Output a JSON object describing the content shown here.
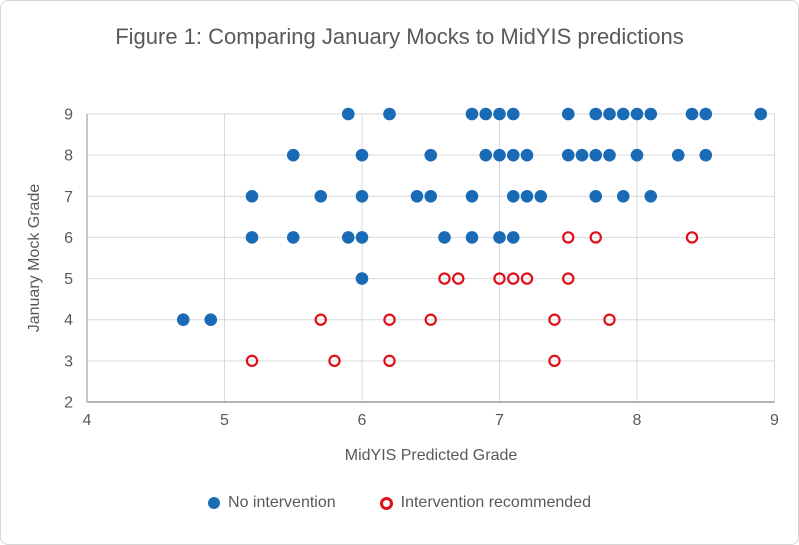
{
  "chart_data": {
    "type": "scatter",
    "title": "Figure 1: Comparing January Mocks to MidYIS predictions",
    "xlabel": "MidYIS Predicted Grade",
    "ylabel": "January Mock Grade",
    "xlim": [
      4,
      9
    ],
    "ylim": [
      2,
      9
    ],
    "xticks": [
      4,
      5,
      6,
      7,
      8,
      9
    ],
    "yticks": [
      2,
      3,
      4,
      5,
      6,
      7,
      8,
      9
    ],
    "grid": true,
    "legend_position": "bottom",
    "colors": {
      "gridline": "#d9d9d9",
      "axis_line": "#b3b3b3",
      "tick_text": "#595959"
    },
    "series": [
      {
        "id": "no-intervention",
        "name": "No intervention",
        "marker": "filled-circle",
        "color": "#1a6bb5",
        "points": [
          [
            5.9,
            9
          ],
          [
            6.2,
            9
          ],
          [
            6.8,
            9
          ],
          [
            6.9,
            9
          ],
          [
            7.0,
            9
          ],
          [
            7.1,
            9
          ],
          [
            7.5,
            9
          ],
          [
            7.7,
            9
          ],
          [
            7.8,
            9
          ],
          [
            7.9,
            9
          ],
          [
            8.0,
            9
          ],
          [
            8.1,
            9
          ],
          [
            8.4,
            9
          ],
          [
            8.5,
            9
          ],
          [
            8.9,
            9
          ],
          [
            5.5,
            8
          ],
          [
            6.0,
            8
          ],
          [
            6.5,
            8
          ],
          [
            6.9,
            8
          ],
          [
            7.0,
            8
          ],
          [
            7.1,
            8
          ],
          [
            7.2,
            8
          ],
          [
            7.5,
            8
          ],
          [
            7.6,
            8
          ],
          [
            7.7,
            8
          ],
          [
            7.8,
            8
          ],
          [
            8.0,
            8
          ],
          [
            8.3,
            8
          ],
          [
            8.5,
            8
          ],
          [
            5.2,
            7
          ],
          [
            5.7,
            7
          ],
          [
            6.0,
            7
          ],
          [
            6.4,
            7
          ],
          [
            6.5,
            7
          ],
          [
            6.8,
            7
          ],
          [
            7.1,
            7
          ],
          [
            7.2,
            7
          ],
          [
            7.3,
            7
          ],
          [
            7.7,
            7
          ],
          [
            7.9,
            7
          ],
          [
            8.1,
            7
          ],
          [
            5.2,
            6
          ],
          [
            5.5,
            6
          ],
          [
            5.9,
            6
          ],
          [
            6.0,
            6
          ],
          [
            6.6,
            6
          ],
          [
            6.8,
            6
          ],
          [
            7.0,
            6
          ],
          [
            7.1,
            6
          ],
          [
            6.0,
            5
          ],
          [
            4.7,
            4
          ],
          [
            4.9,
            4
          ]
        ]
      },
      {
        "id": "intervention-recommended",
        "name": "Intervention recommended",
        "marker": "open-circle",
        "color": "#e01018",
        "points": [
          [
            7.5,
            6
          ],
          [
            7.7,
            6
          ],
          [
            8.4,
            6
          ],
          [
            6.6,
            5
          ],
          [
            6.7,
            5
          ],
          [
            7.0,
            5
          ],
          [
            7.1,
            5
          ],
          [
            7.2,
            5
          ],
          [
            7.5,
            5
          ],
          [
            5.7,
            4
          ],
          [
            6.2,
            4
          ],
          [
            6.5,
            4
          ],
          [
            7.4,
            4
          ],
          [
            7.8,
            4
          ],
          [
            5.2,
            3
          ],
          [
            5.8,
            3
          ],
          [
            6.2,
            3
          ],
          [
            7.4,
            3
          ]
        ]
      }
    ]
  }
}
